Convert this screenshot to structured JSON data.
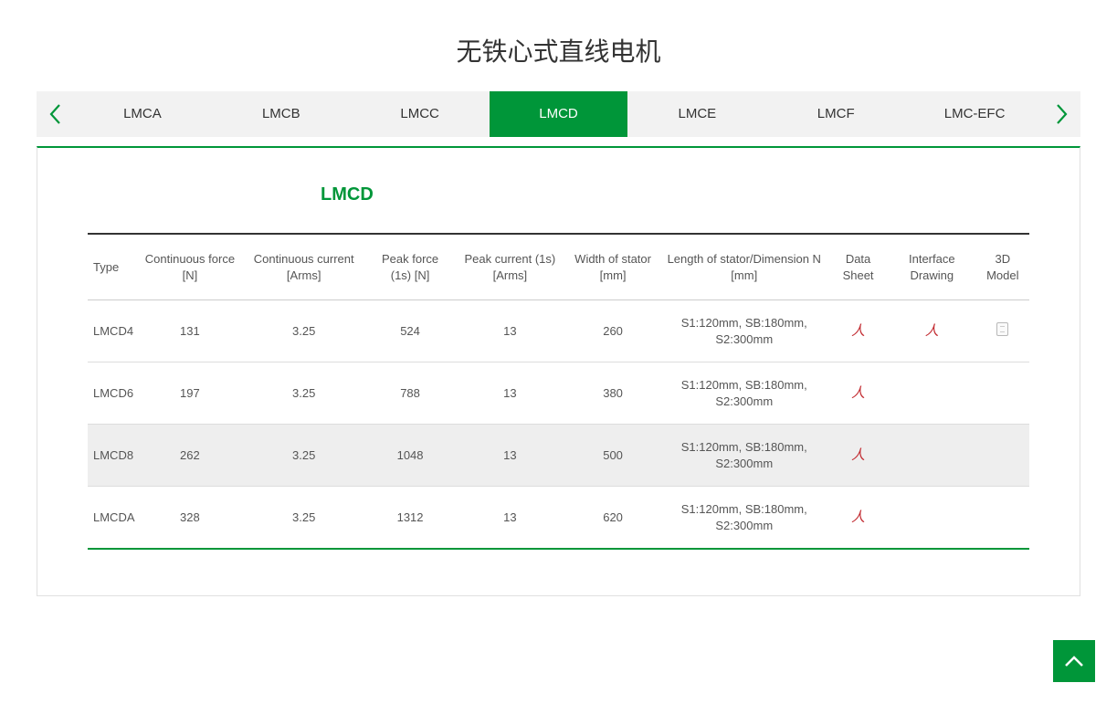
{
  "page_title": "无铁心式直线电机",
  "accent_color": "#009639",
  "tabs": {
    "items": [
      {
        "label": "LMCA"
      },
      {
        "label": "LMCB"
      },
      {
        "label": "LMCC"
      },
      {
        "label": "LMCD"
      },
      {
        "label": "LMCE"
      },
      {
        "label": "LMCF"
      },
      {
        "label": "LMC-EFC"
      }
    ],
    "active_index": 3
  },
  "section_title": "LMCD",
  "table": {
    "columns": [
      "Type",
      "Continuous force [N]",
      "Continuous current [Arms]",
      "Peak force (1s) [N]",
      "Peak current (1s) [Arms]",
      "Width of stator [mm]",
      "Length of stator/Dimension N [mm]",
      "Data Sheet",
      "Interface Drawing",
      "3D Model"
    ],
    "rows": [
      {
        "type": "LMCD4",
        "cont_force": "131",
        "cont_current": "3.25",
        "peak_force": "524",
        "peak_current": "13",
        "width": "260",
        "length": "S1:120mm, SB:180mm, S2:300mm",
        "datasheet": true,
        "interface": true,
        "model3d": true,
        "hover": false
      },
      {
        "type": "LMCD6",
        "cont_force": "197",
        "cont_current": "3.25",
        "peak_force": "788",
        "peak_current": "13",
        "width": "380",
        "length": "S1:120mm, SB:180mm, S2:300mm",
        "datasheet": true,
        "interface": false,
        "model3d": false,
        "hover": false
      },
      {
        "type": "LMCD8",
        "cont_force": "262",
        "cont_current": "3.25",
        "peak_force": "1048",
        "peak_current": "13",
        "width": "500",
        "length": "S1:120mm, SB:180mm, S2:300mm",
        "datasheet": true,
        "interface": false,
        "model3d": false,
        "hover": true
      },
      {
        "type": "LMCDA",
        "cont_force": "328",
        "cont_current": "3.25",
        "peak_force": "1312",
        "peak_current": "13",
        "width": "620",
        "length": "S1:120mm, SB:180mm, S2:300mm",
        "datasheet": true,
        "interface": false,
        "model3d": false,
        "hover": false
      }
    ]
  }
}
